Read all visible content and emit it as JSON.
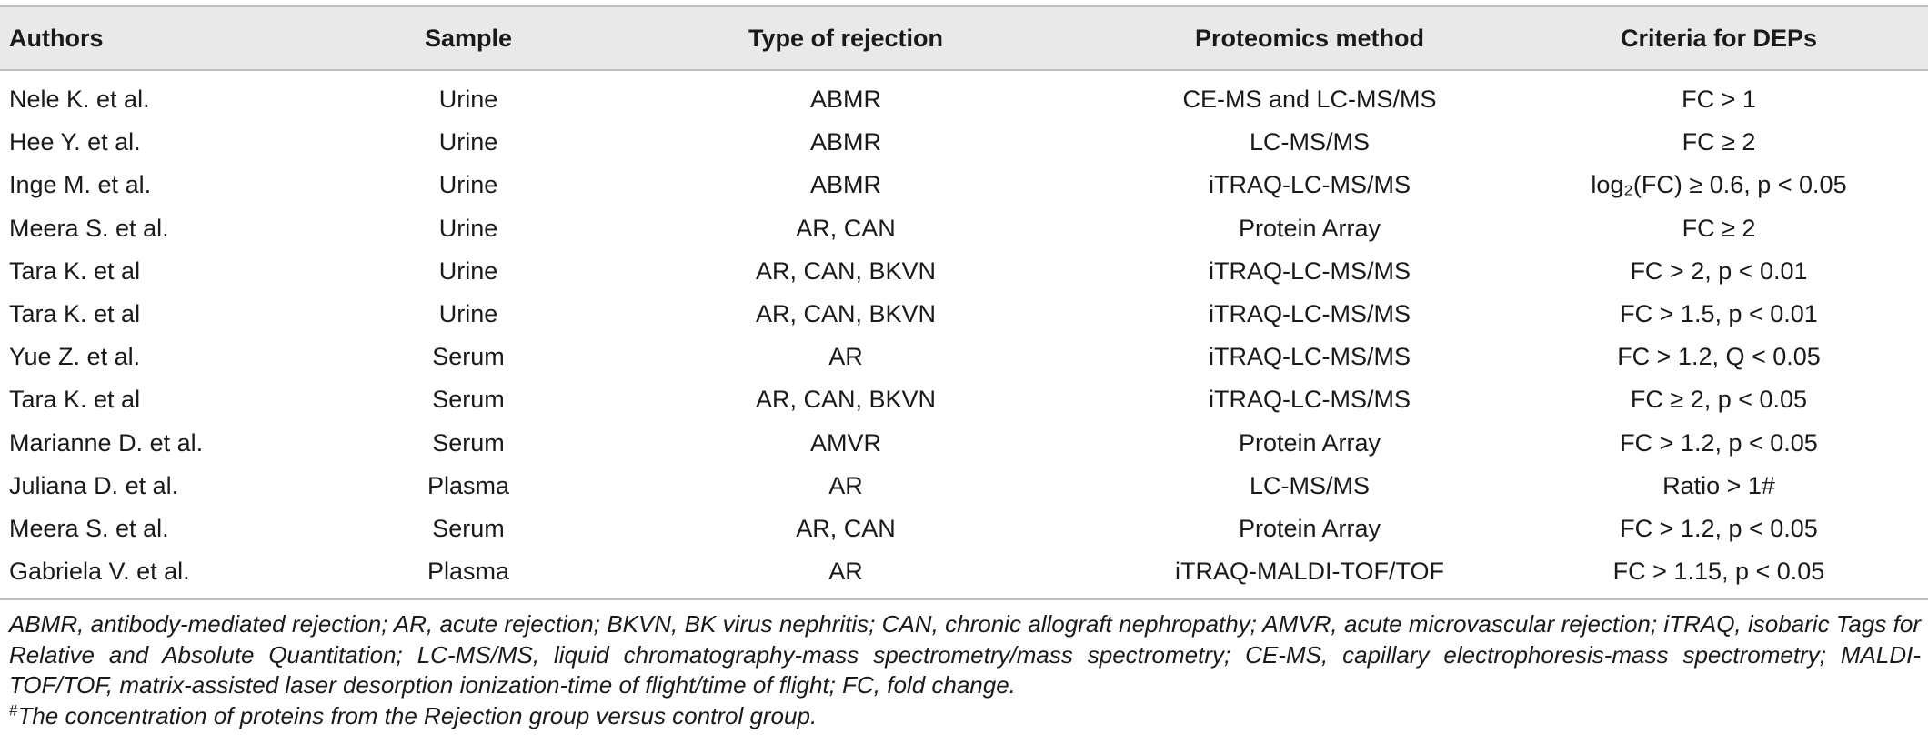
{
  "table": {
    "headers": [
      "Authors",
      "Sample",
      "Type of rejection",
      "Proteomics method",
      "Criteria for DEPs"
    ],
    "rows": [
      [
        "Nele K. et al.",
        "Urine",
        "ABMR",
        "CE-MS and LC-MS/MS",
        "FC > 1"
      ],
      [
        "Hee Y. et al.",
        "Urine",
        "ABMR",
        "LC-MS/MS",
        "FC ≥ 2"
      ],
      [
        "Inge M. et al.",
        "Urine",
        "ABMR",
        "iTRAQ-LC-MS/MS",
        "log₂(FC) ≥ 0.6, p < 0.05"
      ],
      [
        "Meera S. et al.",
        "Urine",
        "AR, CAN",
        "Protein Array",
        "FC ≥ 2"
      ],
      [
        "Tara K. et al",
        "Urine",
        "AR, CAN, BKVN",
        "iTRAQ-LC-MS/MS",
        "FC > 2, p < 0.01"
      ],
      [
        "Tara K. et al",
        "Urine",
        "AR, CAN, BKVN",
        "iTRAQ-LC-MS/MS",
        "FC > 1.5, p < 0.01"
      ],
      [
        "Yue Z. et al.",
        "Serum",
        "AR",
        "iTRAQ-LC-MS/MS",
        "FC > 1.2, Q < 0.05"
      ],
      [
        "Tara K. et al",
        "Serum",
        "AR, CAN, BKVN",
        "iTRAQ-LC-MS/MS",
        "FC ≥ 2, p < 0.05"
      ],
      [
        "Marianne D. et al.",
        "Serum",
        "AMVR",
        "Protein Array",
        "FC > 1.2, p < 0.05"
      ],
      [
        "Juliana D. et al.",
        "Plasma",
        "AR",
        "LC-MS/MS",
        "Ratio > 1#"
      ],
      [
        "Meera S. et al.",
        "Serum",
        "AR, CAN",
        "Protein Array",
        "FC > 1.2, p < 0.05"
      ],
      [
        "Gabriela V. et al.",
        "Plasma",
        "AR",
        "iTRAQ-MALDI-TOF/TOF",
        "FC > 1.15, p < 0.05"
      ]
    ]
  },
  "footnotes": {
    "abbreviations": "ABMR, antibody-mediated rejection; AR, acute rejection; BKVN, BK virus nephritis; CAN, chronic allograft nephropathy; AMVR, acute microvascular rejection; iTRAQ, isobaric Tags for Relative and Absolute Quantitation; LC-MS/MS, liquid chromatography-mass spectrometry/mass spectrometry; CE-MS, capillary electrophoresis-mass spectrometry; MALDI-TOF/TOF, matrix-assisted laser desorption ionization-time of flight/time of flight; FC, fold change.",
    "mark": "#",
    "note": "The concentration of proteins from the Rejection group versus control group."
  },
  "colors": {
    "header_background": "#e9e9e9",
    "rule": "#bdbdbd",
    "text": "#1a1a1a"
  }
}
